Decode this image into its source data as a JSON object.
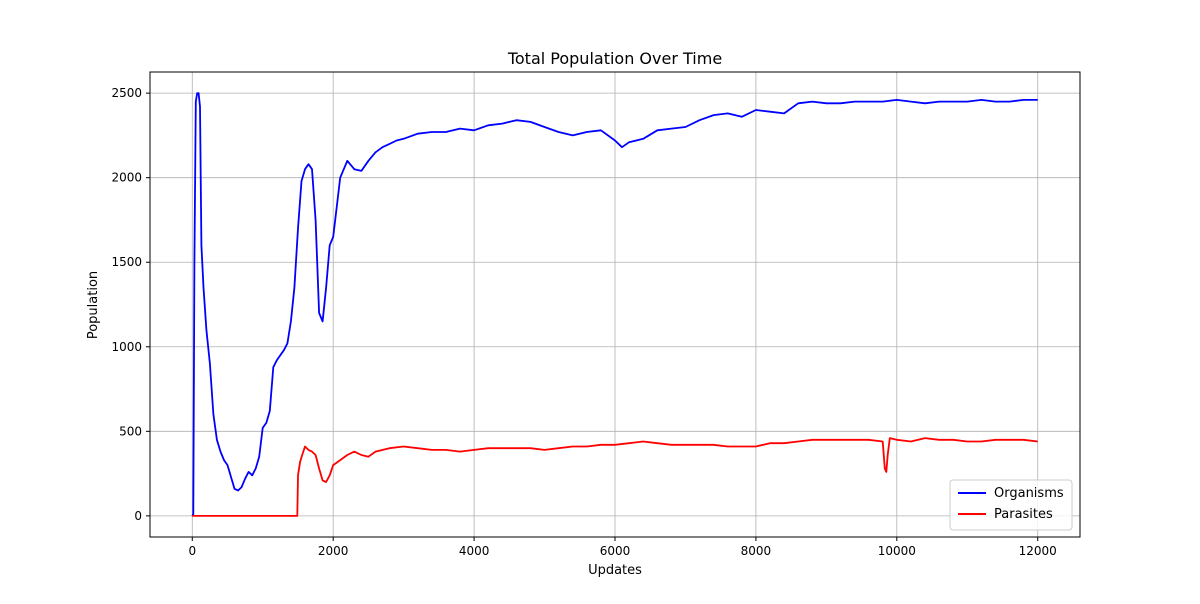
{
  "chart_data": {
    "type": "line",
    "title": "Total Population Over Time",
    "xlabel": "Updates",
    "ylabel": "Population",
    "xlim": [
      -600,
      12600
    ],
    "ylim": [
      -125,
      2625
    ],
    "xticks": [
      0,
      2000,
      4000,
      6000,
      8000,
      10000,
      12000
    ],
    "xtick_labels": [
      "0",
      "2000",
      "4000",
      "6000",
      "8000",
      "10000",
      "12000"
    ],
    "yticks": [
      0,
      500,
      1000,
      1500,
      2000,
      2500
    ],
    "ytick_labels": [
      "0",
      "500",
      "1000",
      "1500",
      "2000",
      "2500"
    ],
    "grid": true,
    "legend_position": "lower-right",
    "series": [
      {
        "name": "Organisms",
        "color": "#0000ff",
        "x": [
          0,
          15,
          30,
          50,
          70,
          90,
          110,
          130,
          160,
          200,
          250,
          300,
          350,
          400,
          450,
          500,
          550,
          600,
          650,
          700,
          750,
          800,
          850,
          900,
          950,
          1000,
          1050,
          1100,
          1150,
          1200,
          1250,
          1300,
          1350,
          1400,
          1450,
          1500,
          1550,
          1600,
          1650,
          1700,
          1750,
          1800,
          1850,
          1900,
          1950,
          2000,
          2100,
          2200,
          2300,
          2400,
          2500,
          2600,
          2700,
          2800,
          2900,
          3000,
          3200,
          3400,
          3600,
          3800,
          4000,
          4200,
          4400,
          4600,
          4800,
          5000,
          5200,
          5400,
          5600,
          5800,
          6000,
          6100,
          6200,
          6400,
          6600,
          6800,
          7000,
          7200,
          7400,
          7600,
          7800,
          8000,
          8200,
          8400,
          8600,
          8800,
          9000,
          9200,
          9400,
          9600,
          9800,
          10000,
          10200,
          10400,
          10600,
          10800,
          11000,
          11200,
          11400,
          11600,
          11800,
          12000
        ],
        "y": [
          0,
          10,
          1500,
          2450,
          2500,
          2500,
          2420,
          1600,
          1350,
          1100,
          900,
          600,
          450,
          380,
          330,
          300,
          230,
          160,
          150,
          170,
          220,
          260,
          240,
          280,
          350,
          520,
          550,
          620,
          880,
          920,
          950,
          980,
          1020,
          1150,
          1350,
          1700,
          1980,
          2050,
          2080,
          2050,
          1750,
          1200,
          1150,
          1350,
          1600,
          1650,
          2000,
          2100,
          2050,
          2040,
          2100,
          2150,
          2180,
          2200,
          2220,
          2230,
          2260,
          2270,
          2270,
          2290,
          2280,
          2310,
          2320,
          2340,
          2330,
          2300,
          2270,
          2250,
          2270,
          2280,
          2220,
          2180,
          2210,
          2230,
          2280,
          2290,
          2300,
          2340,
          2370,
          2380,
          2360,
          2400,
          2390,
          2380,
          2440,
          2450,
          2440,
          2440,
          2450,
          2450,
          2450,
          2460,
          2450,
          2440,
          2450,
          2450,
          2450,
          2460,
          2450,
          2450,
          2460,
          2460
        ]
      },
      {
        "name": "Parasites",
        "color": "#ff0000",
        "x": [
          0,
          100,
          500,
          1000,
          1490,
          1500,
          1530,
          1560,
          1600,
          1650,
          1700,
          1750,
          1800,
          1850,
          1900,
          1950,
          2000,
          2100,
          2200,
          2300,
          2400,
          2500,
          2600,
          2800,
          3000,
          3200,
          3400,
          3600,
          3800,
          4000,
          4200,
          4400,
          4600,
          4800,
          5000,
          5200,
          5400,
          5600,
          5800,
          6000,
          6200,
          6400,
          6600,
          6800,
          7000,
          7200,
          7400,
          7600,
          7800,
          8000,
          8200,
          8400,
          8600,
          8800,
          9000,
          9200,
          9400,
          9600,
          9800,
          9830,
          9850,
          9870,
          9900,
          10000,
          10200,
          10400,
          10600,
          10800,
          11000,
          11200,
          11400,
          11600,
          11800,
          12000
        ],
        "y": [
          0,
          0,
          0,
          0,
          0,
          240,
          320,
          360,
          410,
          390,
          380,
          360,
          280,
          210,
          200,
          240,
          300,
          330,
          360,
          380,
          360,
          350,
          380,
          400,
          410,
          400,
          390,
          390,
          380,
          390,
          400,
          400,
          400,
          400,
          390,
          400,
          410,
          410,
          420,
          420,
          430,
          440,
          430,
          420,
          420,
          420,
          420,
          410,
          410,
          410,
          430,
          430,
          440,
          450,
          450,
          450,
          450,
          450,
          440,
          280,
          260,
          360,
          460,
          450,
          440,
          460,
          450,
          450,
          440,
          440,
          450,
          450,
          450,
          440
        ]
      }
    ]
  }
}
